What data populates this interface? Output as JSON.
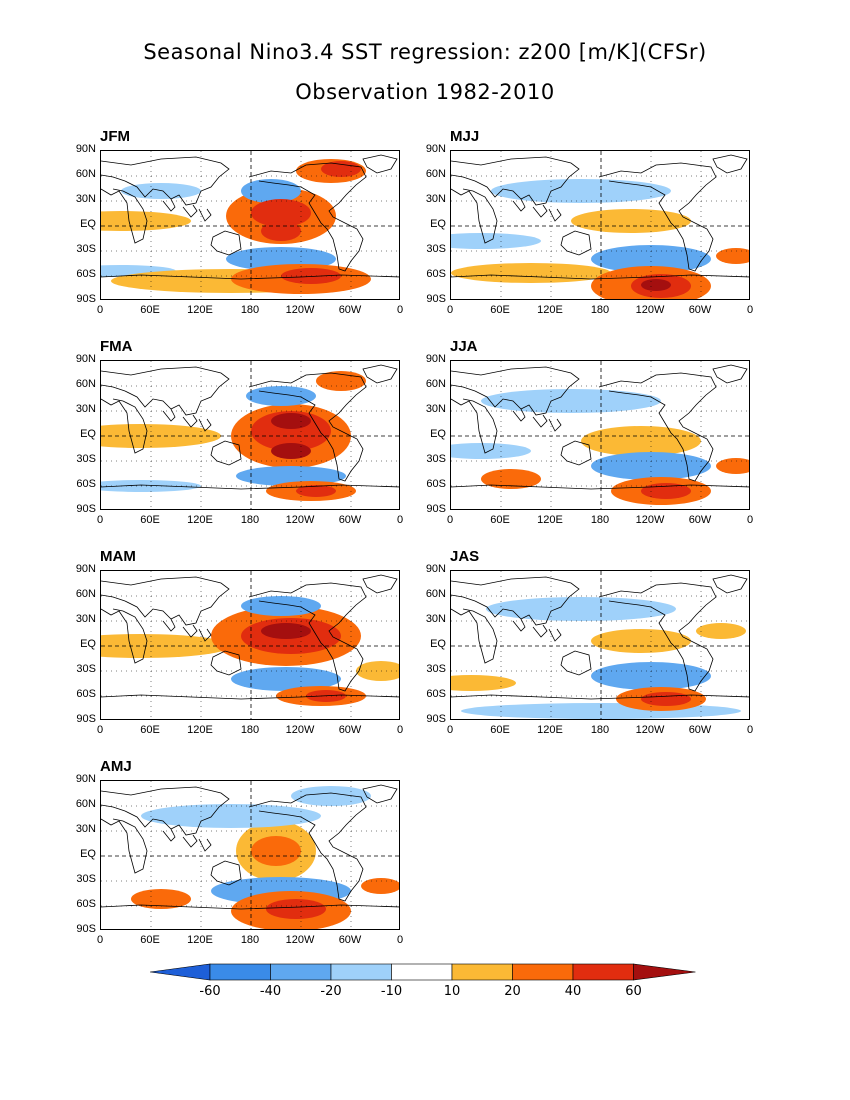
{
  "title_line1": "Seasonal Nino3.4 SST regression: z200 [m/K](CFSr)",
  "title_line2": "Observation 1982-2010",
  "lat_labels": [
    "90N",
    "60N",
    "30N",
    "EQ",
    "30S",
    "60S",
    "90S"
  ],
  "lon_labels": [
    "0",
    "60E",
    "120E",
    "180",
    "120W",
    "60W",
    "0"
  ],
  "panels": [
    {
      "season": "JFM"
    },
    {
      "season": "MJJ"
    },
    {
      "season": "FMA"
    },
    {
      "season": "JJA"
    },
    {
      "season": "MAM"
    },
    {
      "season": "JAS"
    },
    {
      "season": "AMJ"
    }
  ],
  "colorbar": {
    "levels": [
      "-60",
      "-40",
      "-20",
      "-10",
      "10",
      "20",
      "40",
      "60"
    ],
    "colors": [
      "#1e5fd8",
      "#3a8be8",
      "#5fa8f0",
      "#9fd1fa",
      "#ffffff",
      "#fbb935",
      "#fa6a0a",
      "#e12d0f",
      "#a40f0f"
    ]
  }
}
